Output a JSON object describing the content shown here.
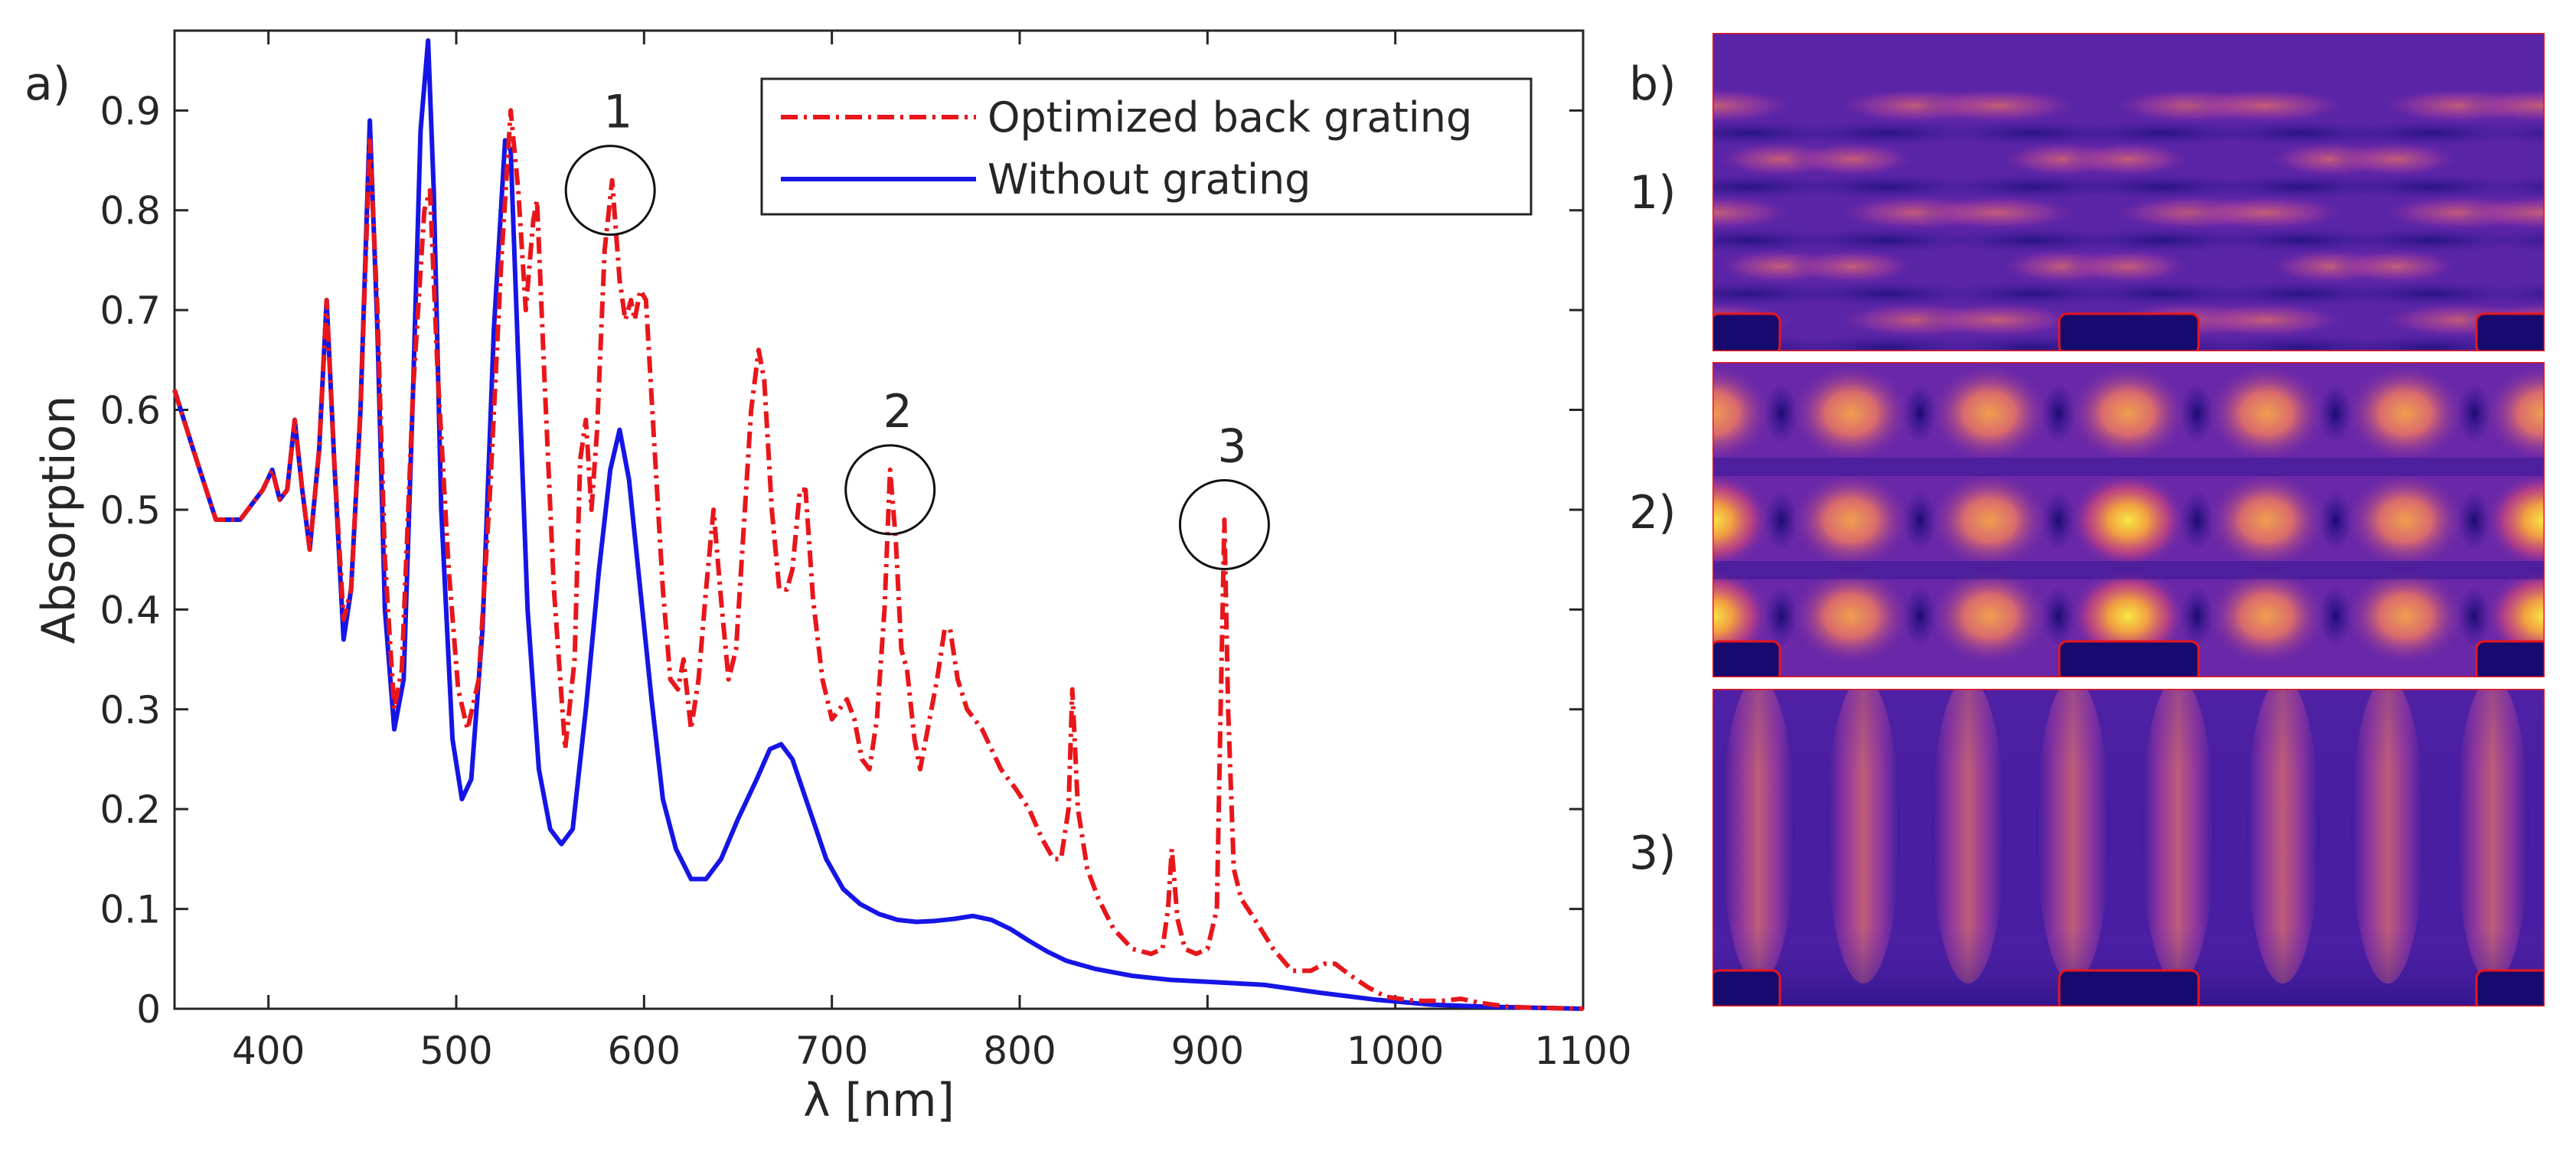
{
  "panel_a_label": "a)",
  "panel_b_label": "b)",
  "chart_data": {
    "type": "line",
    "title": "",
    "xlabel": "λ [nm]",
    "ylabel": "Absorption",
    "xlim": [
      350,
      1100
    ],
    "ylim": [
      0,
      0.98
    ],
    "xticks": [
      400,
      500,
      600,
      700,
      800,
      900,
      1000,
      1100
    ],
    "yticks": [
      0,
      0.1,
      0.2,
      0.3,
      0.4,
      0.5,
      0.6,
      0.7,
      0.8,
      0.9
    ],
    "ytick_labels": [
      "0",
      "0.1",
      "0.2",
      "0.3",
      "0.4",
      "0.5",
      "0.6",
      "0.7",
      "0.8",
      "0.9"
    ],
    "grid": false,
    "legend_position": "top-right",
    "series": [
      {
        "name": "Optimized back grating",
        "color": "#e8161b",
        "style": "dash-dot",
        "points": [
          [
            350,
            0.62
          ],
          [
            360,
            0.56
          ],
          [
            372,
            0.49
          ],
          [
            385,
            0.49
          ],
          [
            393,
            0.51
          ],
          [
            397,
            0.52
          ],
          [
            402,
            0.54
          ],
          [
            406,
            0.51
          ],
          [
            410,
            0.52
          ],
          [
            414,
            0.59
          ],
          [
            418,
            0.52
          ],
          [
            422,
            0.46
          ],
          [
            427,
            0.56
          ],
          [
            431,
            0.71
          ],
          [
            435,
            0.55
          ],
          [
            440,
            0.39
          ],
          [
            444,
            0.42
          ],
          [
            449,
            0.6
          ],
          [
            454,
            0.87
          ],
          [
            458,
            0.7
          ],
          [
            462,
            0.45
          ],
          [
            467,
            0.3
          ],
          [
            471,
            0.34
          ],
          [
            477,
            0.62
          ],
          [
            483,
            0.8
          ],
          [
            486,
            0.82
          ],
          [
            490,
            0.64
          ],
          [
            496,
            0.44
          ],
          [
            501,
            0.32
          ],
          [
            506,
            0.28
          ],
          [
            512,
            0.33
          ],
          [
            518,
            0.52
          ],
          [
            524,
            0.75
          ],
          [
            529,
            0.9
          ],
          [
            533,
            0.82
          ],
          [
            537,
            0.7
          ],
          [
            541,
            0.79
          ],
          [
            543,
            0.81
          ],
          [
            547,
            0.63
          ],
          [
            552,
            0.42
          ],
          [
            558,
            0.26
          ],
          [
            563,
            0.35
          ],
          [
            566,
            0.55
          ],
          [
            569,
            0.59
          ],
          [
            572,
            0.5
          ],
          [
            575,
            0.58
          ],
          [
            579,
            0.76
          ],
          [
            583,
            0.83
          ],
          [
            587,
            0.73
          ],
          [
            590,
            0.69
          ],
          [
            593,
            0.71
          ],
          [
            595,
            0.69
          ],
          [
            598,
            0.72
          ],
          [
            601,
            0.71
          ],
          [
            605,
            0.58
          ],
          [
            610,
            0.42
          ],
          [
            614,
            0.33
          ],
          [
            618,
            0.32
          ],
          [
            621,
            0.35
          ],
          [
            625,
            0.28
          ],
          [
            629,
            0.33
          ],
          [
            633,
            0.42
          ],
          [
            637,
            0.5
          ],
          [
            641,
            0.41
          ],
          [
            645,
            0.33
          ],
          [
            649,
            0.36
          ],
          [
            653,
            0.48
          ],
          [
            657,
            0.6
          ],
          [
            661,
            0.66
          ],
          [
            664,
            0.63
          ],
          [
            668,
            0.5
          ],
          [
            672,
            0.42
          ],
          [
            676,
            0.42
          ],
          [
            679,
            0.44
          ],
          [
            683,
            0.52
          ],
          [
            686,
            0.52
          ],
          [
            690,
            0.41
          ],
          [
            695,
            0.33
          ],
          [
            700,
            0.29
          ],
          [
            704,
            0.3
          ],
          [
            708,
            0.31
          ],
          [
            712,
            0.29
          ],
          [
            716,
            0.25
          ],
          [
            720,
            0.24
          ],
          [
            724,
            0.29
          ],
          [
            728,
            0.4
          ],
          [
            731,
            0.54
          ],
          [
            734,
            0.47
          ],
          [
            737,
            0.36
          ],
          [
            740,
            0.34
          ],
          [
            744,
            0.27
          ],
          [
            747,
            0.24
          ],
          [
            751,
            0.28
          ],
          [
            756,
            0.33
          ],
          [
            760,
            0.38
          ],
          [
            763,
            0.38
          ],
          [
            767,
            0.33
          ],
          [
            772,
            0.3
          ],
          [
            780,
            0.28
          ],
          [
            790,
            0.24
          ],
          [
            798,
            0.22
          ],
          [
            805,
            0.2
          ],
          [
            812,
            0.17
          ],
          [
            818,
            0.15
          ],
          [
            822,
            0.15
          ],
          [
            826,
            0.2
          ],
          [
            828,
            0.32
          ],
          [
            831,
            0.2
          ],
          [
            836,
            0.14
          ],
          [
            842,
            0.11
          ],
          [
            850,
            0.08
          ],
          [
            860,
            0.06
          ],
          [
            870,
            0.055
          ],
          [
            876,
            0.06
          ],
          [
            879,
            0.1
          ],
          [
            881,
            0.16
          ],
          [
            884,
            0.09
          ],
          [
            888,
            0.06
          ],
          [
            894,
            0.055
          ],
          [
            900,
            0.06
          ],
          [
            905,
            0.1
          ],
          [
            907,
            0.3
          ],
          [
            909,
            0.49
          ],
          [
            911,
            0.3
          ],
          [
            914,
            0.14
          ],
          [
            918,
            0.11
          ],
          [
            925,
            0.09
          ],
          [
            935,
            0.06
          ],
          [
            945,
            0.038
          ],
          [
            955,
            0.038
          ],
          [
            962,
            0.045
          ],
          [
            968,
            0.045
          ],
          [
            975,
            0.035
          ],
          [
            985,
            0.022
          ],
          [
            995,
            0.012
          ],
          [
            1010,
            0.008
          ],
          [
            1025,
            0.008
          ],
          [
            1035,
            0.01
          ],
          [
            1045,
            0.006
          ],
          [
            1060,
            0.002
          ],
          [
            1075,
            0.001
          ],
          [
            1100,
            0.0
          ]
        ]
      },
      {
        "name": "Without grating",
        "color": "#1515e6",
        "style": "solid",
        "points": [
          [
            350,
            0.62
          ],
          [
            360,
            0.56
          ],
          [
            372,
            0.49
          ],
          [
            385,
            0.49
          ],
          [
            393,
            0.51
          ],
          [
            397,
            0.52
          ],
          [
            402,
            0.54
          ],
          [
            406,
            0.51
          ],
          [
            410,
            0.52
          ],
          [
            414,
            0.59
          ],
          [
            418,
            0.52
          ],
          [
            422,
            0.46
          ],
          [
            427,
            0.56
          ],
          [
            431,
            0.71
          ],
          [
            435,
            0.55
          ],
          [
            440,
            0.37
          ],
          [
            444,
            0.42
          ],
          [
            449,
            0.6
          ],
          [
            454,
            0.89
          ],
          [
            458,
            0.68
          ],
          [
            462,
            0.4
          ],
          [
            467,
            0.28
          ],
          [
            472,
            0.33
          ],
          [
            477,
            0.62
          ],
          [
            481,
            0.88
          ],
          [
            485,
            0.97
          ],
          [
            488,
            0.82
          ],
          [
            492,
            0.5
          ],
          [
            498,
            0.27
          ],
          [
            503,
            0.21
          ],
          [
            508,
            0.23
          ],
          [
            514,
            0.38
          ],
          [
            520,
            0.68
          ],
          [
            526,
            0.87
          ],
          [
            529,
            0.86
          ],
          [
            533,
            0.65
          ],
          [
            538,
            0.4
          ],
          [
            544,
            0.24
          ],
          [
            550,
            0.18
          ],
          [
            556,
            0.165
          ],
          [
            562,
            0.18
          ],
          [
            569,
            0.3
          ],
          [
            576,
            0.44
          ],
          [
            582,
            0.54
          ],
          [
            587,
            0.58
          ],
          [
            592,
            0.53
          ],
          [
            598,
            0.42
          ],
          [
            604,
            0.31
          ],
          [
            610,
            0.21
          ],
          [
            617,
            0.16
          ],
          [
            625,
            0.13
          ],
          [
            633,
            0.13
          ],
          [
            641,
            0.15
          ],
          [
            650,
            0.19
          ],
          [
            660,
            0.23
          ],
          [
            667,
            0.26
          ],
          [
            673,
            0.265
          ],
          [
            679,
            0.25
          ],
          [
            688,
            0.2
          ],
          [
            697,
            0.15
          ],
          [
            706,
            0.12
          ],
          [
            715,
            0.105
          ],
          [
            725,
            0.095
          ],
          [
            735,
            0.089
          ],
          [
            745,
            0.087
          ],
          [
            755,
            0.088
          ],
          [
            765,
            0.09
          ],
          [
            775,
            0.093
          ],
          [
            785,
            0.089
          ],
          [
            795,
            0.08
          ],
          [
            805,
            0.068
          ],
          [
            815,
            0.057
          ],
          [
            825,
            0.048
          ],
          [
            840,
            0.04
          ],
          [
            860,
            0.033
          ],
          [
            880,
            0.029
          ],
          [
            900,
            0.027
          ],
          [
            930,
            0.024
          ],
          [
            960,
            0.016
          ],
          [
            990,
            0.009
          ],
          [
            1020,
            0.004
          ],
          [
            1050,
            0.002
          ],
          [
            1075,
            0.001
          ],
          [
            1100,
            0.0
          ]
        ]
      }
    ],
    "annotations": [
      {
        "label": "1",
        "x": 582,
        "y": 0.82
      },
      {
        "label": "2",
        "x": 731,
        "y": 0.52
      },
      {
        "label": "3",
        "x": 909,
        "y": 0.485
      }
    ]
  },
  "field_maps": {
    "rows": [
      {
        "label": "1)",
        "intensity": 0.35
      },
      {
        "label": "2)",
        "intensity": 1.0
      },
      {
        "label": "3)",
        "intensity": 0.55
      }
    ]
  }
}
